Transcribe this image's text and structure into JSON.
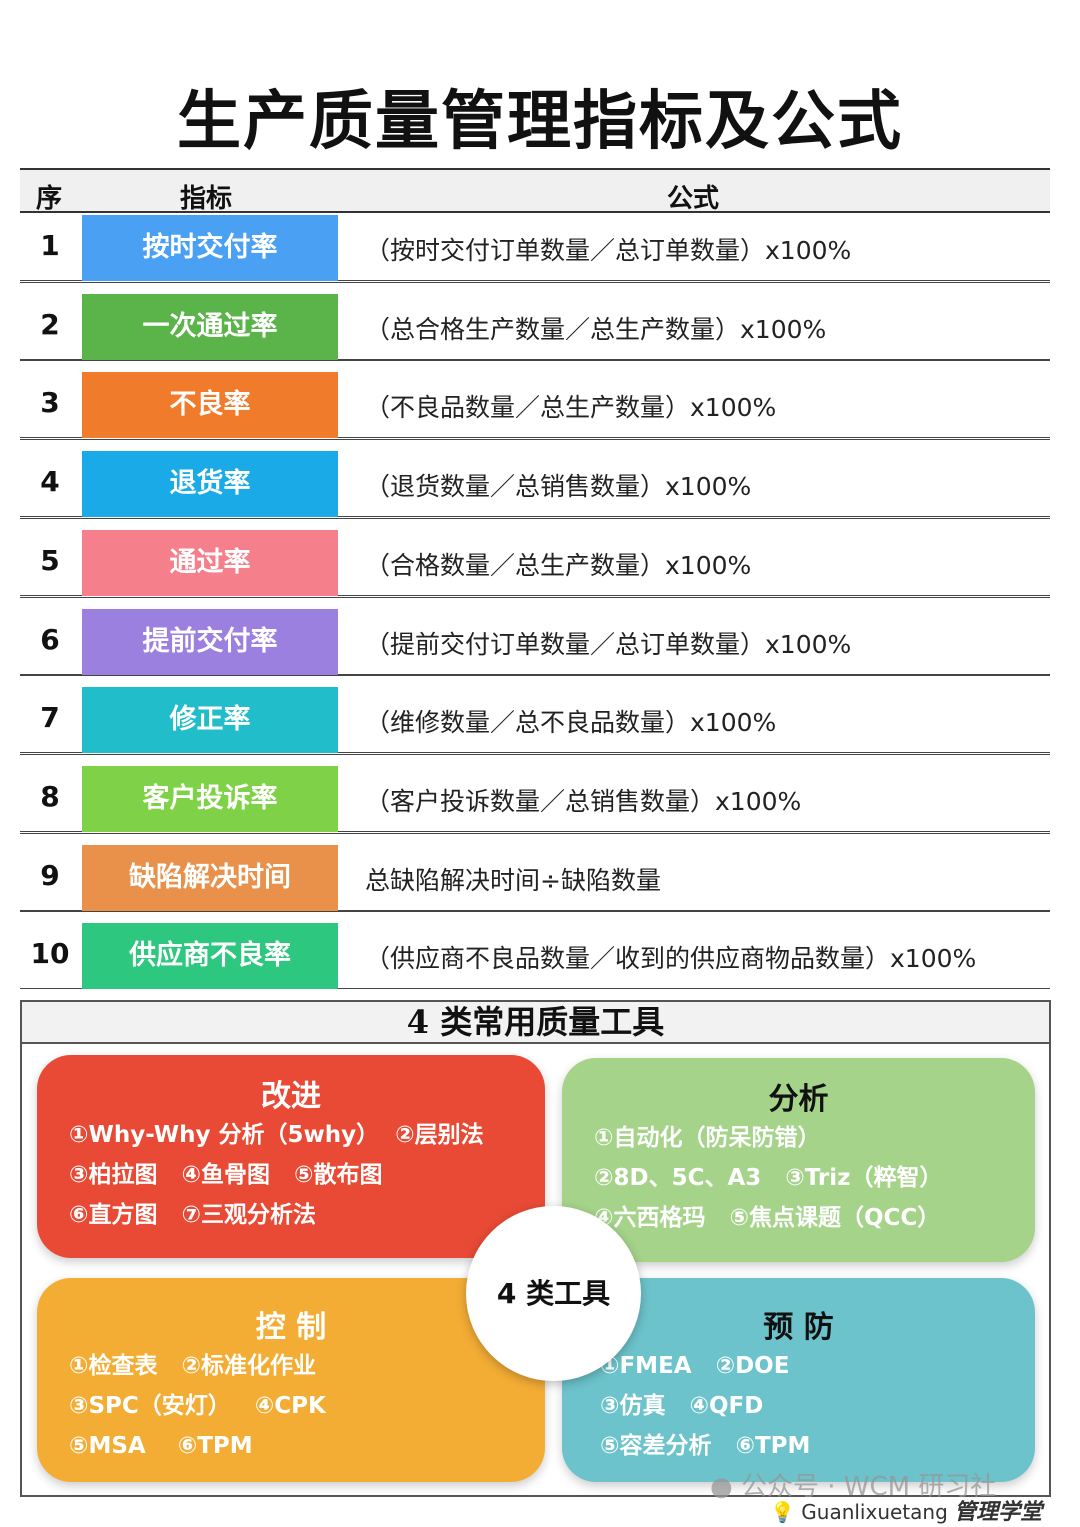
{
  "title": "生产质量管理指标及公式",
  "header": {
    "seq": "序",
    "metric": "指标",
    "formula": "公式"
  },
  "rows": [
    {
      "num": "1",
      "metric": "按时交付率",
      "formula": "（按时交付订单数量／总订单数量）x100%",
      "color": "#4aa0f3"
    },
    {
      "num": "2",
      "metric": "一次通过率",
      "formula": "（总合格生产数量／总生产数量）x100%",
      "color": "#5bb449"
    },
    {
      "num": "3",
      "metric": "不良率",
      "formula": "（不良品数量／总生产数量）x100%",
      "color": "#f07b2b"
    },
    {
      "num": "4",
      "metric": "退货率",
      "formula": "（退货数量／总销售数量）x100%",
      "color": "#1aaae8"
    },
    {
      "num": "5",
      "metric": "通过率",
      "formula": "（合格数量／总生产数量）x100%",
      "color": "#f5808b"
    },
    {
      "num": "6",
      "metric": "提前交付率",
      "formula": "（提前交付订单数量／总订单数量）x100%",
      "color": "#9b80e0"
    },
    {
      "num": "7",
      "metric": "修正率",
      "formula": "（维修数量／总不良品数量）x100%",
      "color": "#22bdcb"
    },
    {
      "num": "8",
      "metric": "客户投诉率",
      "formula": "（客户投诉数量／总销售数量）x100%",
      "color": "#7fd248"
    },
    {
      "num": "9",
      "metric": "缺陷解决时间",
      "formula": "总缺陷解决时间÷缺陷数量",
      "color": "#e9914b"
    },
    {
      "num": "10",
      "metric": "供应商不良率",
      "formula": "（供应商不良品数量／收到的供应商物品数量）x100%",
      "color": "#2ec77f"
    }
  ],
  "tools": {
    "title": "4 类常用质量工具",
    "center": "4 类工具",
    "improve": {
      "title": "改进",
      "lines": [
        "①Why-Why 分析（5why）  ②层别法",
        "③柏拉图   ④鱼骨图   ⑤散布图",
        "⑥直方图   ⑦三观分析法"
      ],
      "color": "#e84a35"
    },
    "analyze": {
      "title": "分析",
      "lines": [
        "①自动化（防呆防错）",
        "②8D、5C、A3   ③Triz（粹智）",
        "④六西格玛   ⑤焦点课题（QCC）"
      ],
      "color": "#a5d38a"
    },
    "control": {
      "title": "控 制",
      "lines": [
        "①检查表   ②标准化作业",
        "③SPC（安灯）   ④CPK",
        "⑤MSA    ⑥TPM"
      ],
      "color": "#f3ad35"
    },
    "prevent": {
      "title": "预 防",
      "lines": [
        "①FMEA   ②DOE",
        "③仿真   ④QFD",
        "⑤容差分析   ⑥TPM"
      ],
      "color": "#6cc3cb"
    }
  },
  "watermark": {
    "line1": "公众号 · WCM 研习社",
    "line2": "Guanlixuetang",
    "logo": "管理学堂"
  }
}
